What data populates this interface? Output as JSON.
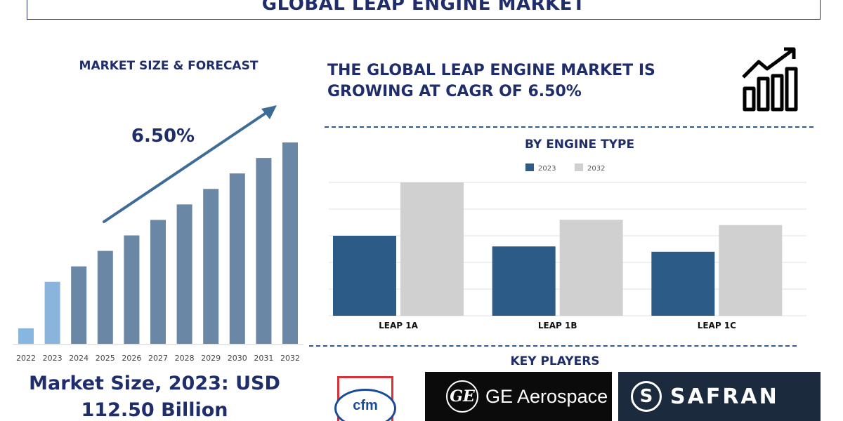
{
  "title": "GLOBAL LEAP ENGINE MARKET",
  "left_panel": {
    "subtitle": "MARKET SIZE & FORECAST",
    "cagr_label": "6.50%",
    "market_size_text": "Market Size, 2023: USD 112.50 Billion"
  },
  "headline": "THE GLOBAL LEAP ENGINE MARKET IS GROWING AT CAGR OF 6.50%",
  "engine_section_title": "BY ENGINE TYPE",
  "key_players": {
    "title": "KEY PLAYERS",
    "logos": [
      "cfm",
      "GE Aerospace",
      "SAFRAN"
    ]
  },
  "colors": {
    "navy_text": "#1f2d6b",
    "bar_dark": "#2d5b88",
    "bar_forecast": "#6a87a6",
    "bar_light_blue": "#87b7e0",
    "bar_grey": "#d0d0d0",
    "arrow": "#3f6c96"
  },
  "icons": [
    "growth-chart-icon",
    "ge-monogram-icon",
    "safran-mark-icon"
  ],
  "chart_data": [
    {
      "type": "bar",
      "title": "MARKET SIZE & FORECAST",
      "categories": [
        "2022",
        "2023",
        "2024",
        "2025",
        "2026",
        "2027",
        "2028",
        "2029",
        "2030",
        "2031",
        "2032"
      ],
      "values": [
        10,
        40,
        50,
        60,
        70,
        80,
        90,
        100,
        110,
        120,
        130
      ],
      "ylim": [
        0,
        135
      ],
      "grid": false,
      "annotations": [
        "6.50%"
      ]
    },
    {
      "type": "bar",
      "title": "BY ENGINE TYPE",
      "categories": [
        "LEAP 1A",
        "LEAP 1B",
        "LEAP 1C"
      ],
      "series": [
        {
          "name": "2023",
          "values": [
            3.0,
            2.6,
            2.4
          ]
        },
        {
          "name": "2032",
          "values": [
            5.0,
            3.6,
            3.4
          ]
        }
      ],
      "ylim": [
        0,
        5
      ],
      "grid": true,
      "legend": "top-center"
    }
  ]
}
